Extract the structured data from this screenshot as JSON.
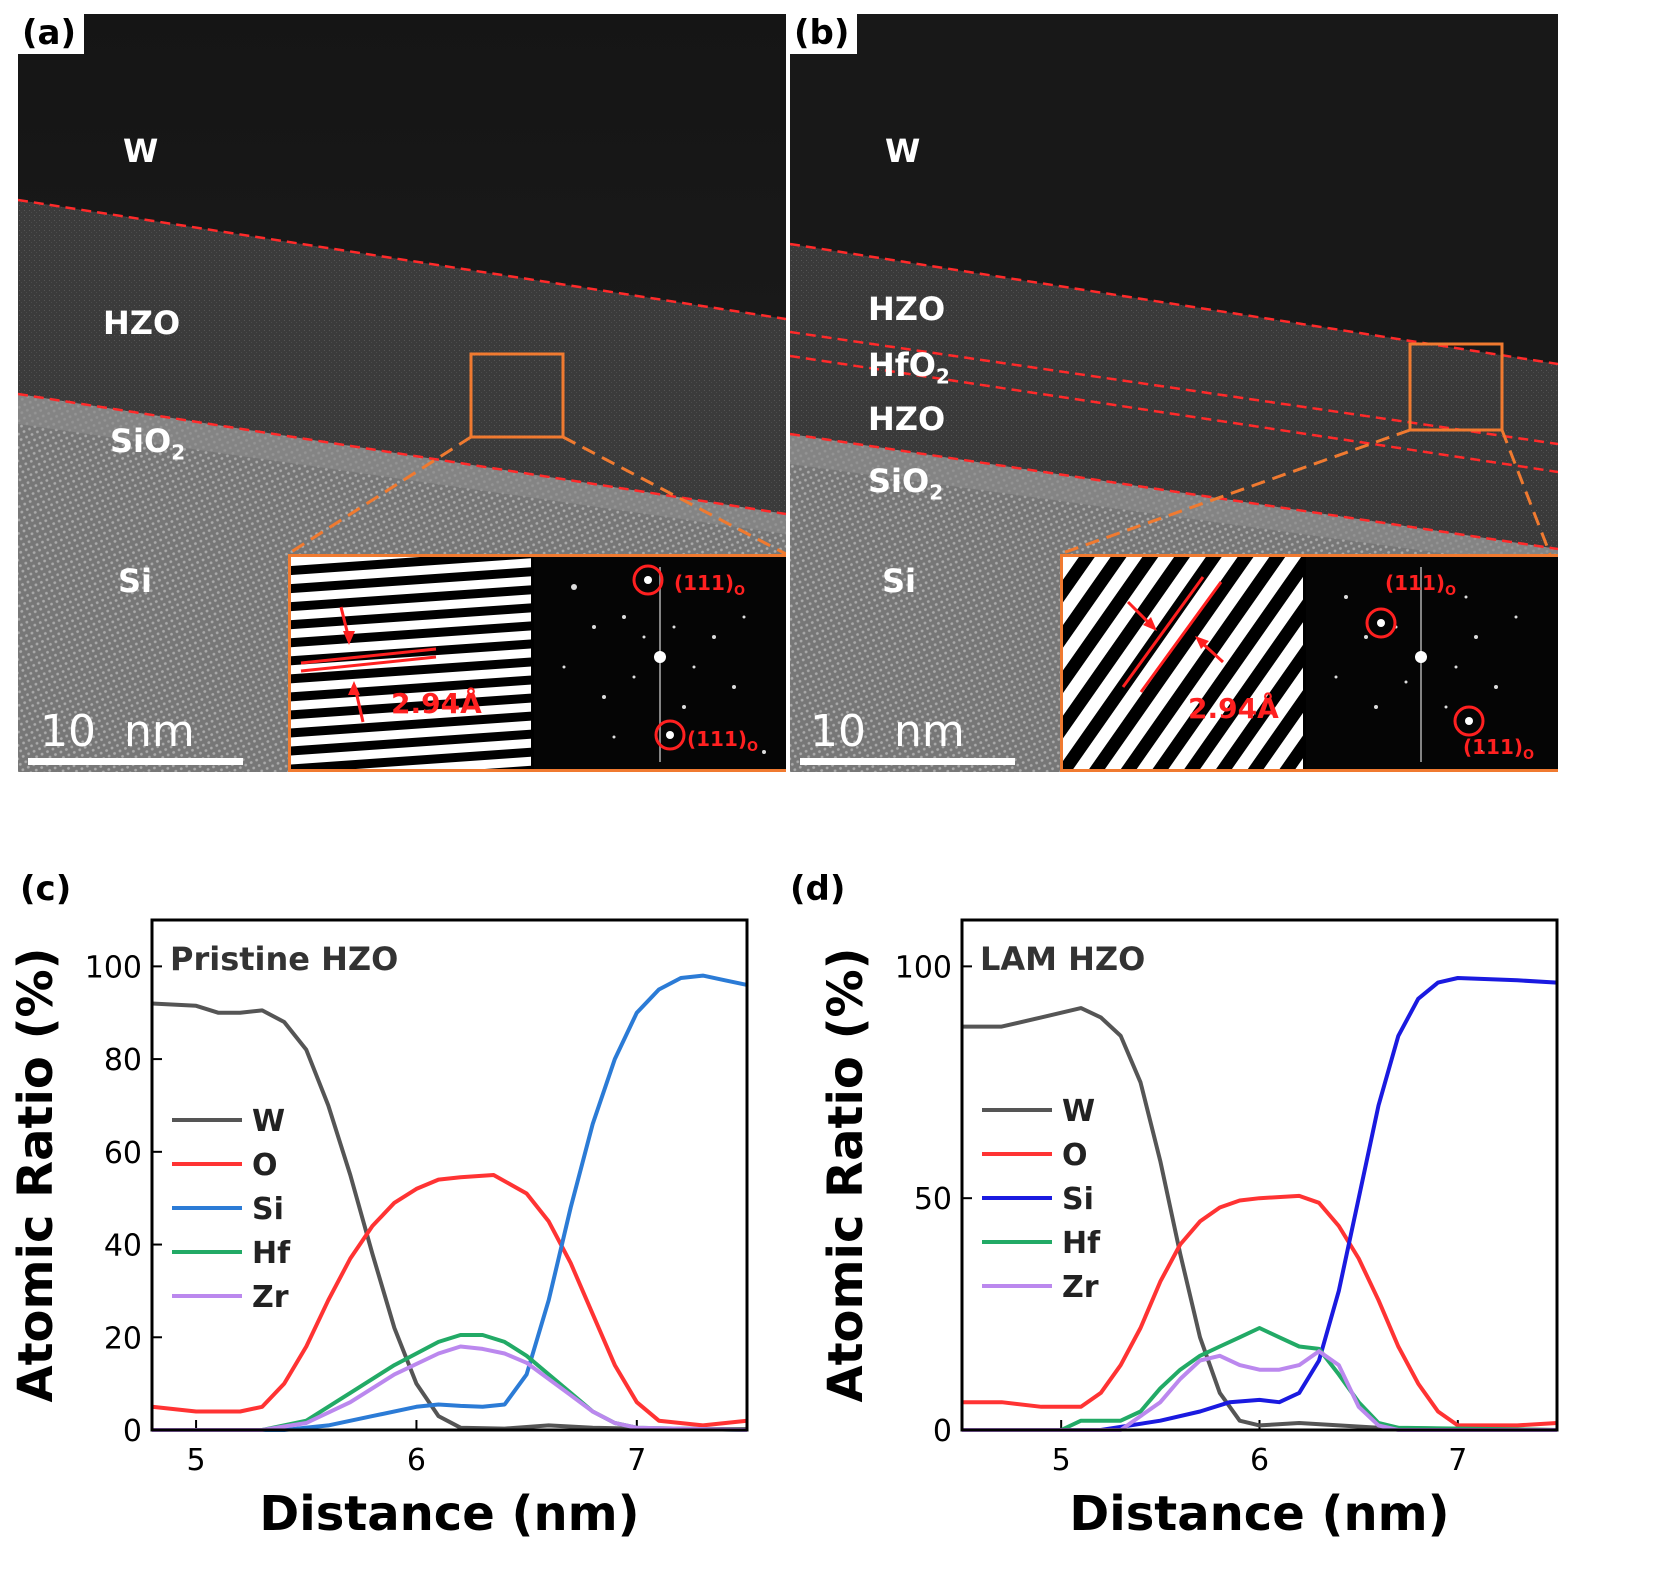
{
  "panels": {
    "a": {
      "tag": "(a)",
      "layers": {
        "w": "W",
        "hzo": "HZO",
        "sio2_main": "SiO",
        "sio2_sub": "2",
        "si": "Si"
      },
      "scale_label": "10  nm",
      "inset": {
        "spacing": "2.94Å",
        "spot1": "(111)",
        "spot1_sub": "O",
        "spot2": "(111)",
        "spot2_sub": "O"
      }
    },
    "b": {
      "tag": "(b)",
      "layers": {
        "w": "W",
        "hzo_top": "HZO",
        "hfo2_main": "HfO",
        "hfo2_sub": "2",
        "hzo_bottom": "HZO",
        "sio2_main": "SiO",
        "sio2_sub": "2",
        "si": "Si"
      },
      "scale_label": "10  nm",
      "inset": {
        "spacing": "2.94Å",
        "spot1": "(111)",
        "spot1_sub": "O",
        "spot2": "(111)",
        "spot2_sub": "O"
      }
    },
    "c": {
      "tag": "(c)"
    },
    "d": {
      "tag": "(d)"
    }
  },
  "colors": {
    "W": "#555555",
    "O": "#ff3333",
    "Si_c": "#2b7bd6",
    "Si_d": "#1a1ae0",
    "Hf": "#22aa66",
    "Zr": "#bb88ee",
    "orange": "#f07a30",
    "red": "#ff2020"
  },
  "chart_data": [
    {
      "type": "line",
      "title": "Pristine HZO",
      "xlabel": "Distance (nm)",
      "ylabel": "Atomic Ratio (%)",
      "xlim": [
        4.8,
        7.5
      ],
      "ylim": [
        0,
        110
      ],
      "xticks": [
        5,
        6,
        7
      ],
      "yticks": [
        0,
        20,
        40,
        60,
        80,
        100
      ],
      "legend_position": "middle-left",
      "series": [
        {
          "name": "W",
          "points": [
            [
              4.8,
              92
            ],
            [
              5.0,
              91.5
            ],
            [
              5.1,
              90
            ],
            [
              5.2,
              90
            ],
            [
              5.3,
              90.5
            ],
            [
              5.4,
              88
            ],
            [
              5.5,
              82
            ],
            [
              5.6,
              70
            ],
            [
              5.7,
              55
            ],
            [
              5.8,
              38
            ],
            [
              5.9,
              22
            ],
            [
              6.0,
              10
            ],
            [
              6.1,
              3
            ],
            [
              6.2,
              0.5
            ],
            [
              6.4,
              0.3
            ],
            [
              6.6,
              1
            ],
            [
              6.8,
              0.5
            ],
            [
              7.0,
              0.3
            ],
            [
              7.5,
              0.2
            ]
          ]
        },
        {
          "name": "O",
          "points": [
            [
              4.8,
              5
            ],
            [
              5.0,
              4
            ],
            [
              5.2,
              4
            ],
            [
              5.3,
              5
            ],
            [
              5.4,
              10
            ],
            [
              5.5,
              18
            ],
            [
              5.6,
              28
            ],
            [
              5.7,
              37
            ],
            [
              5.8,
              44
            ],
            [
              5.9,
              49
            ],
            [
              6.0,
              52
            ],
            [
              6.1,
              54
            ],
            [
              6.2,
              54.5
            ],
            [
              6.35,
              55
            ],
            [
              6.5,
              51
            ],
            [
              6.6,
              45
            ],
            [
              6.7,
              36
            ],
            [
              6.8,
              25
            ],
            [
              6.9,
              14
            ],
            [
              7.0,
              6
            ],
            [
              7.1,
              2
            ],
            [
              7.3,
              1
            ],
            [
              7.5,
              2
            ]
          ]
        },
        {
          "name": "Si",
          "points": [
            [
              4.8,
              0
            ],
            [
              5.4,
              0
            ],
            [
              5.6,
              1
            ],
            [
              5.8,
              3
            ],
            [
              6.0,
              5
            ],
            [
              6.1,
              5.5
            ],
            [
              6.2,
              5.2
            ],
            [
              6.3,
              5
            ],
            [
              6.4,
              5.5
            ],
            [
              6.5,
              12
            ],
            [
              6.6,
              28
            ],
            [
              6.7,
              48
            ],
            [
              6.8,
              66
            ],
            [
              6.9,
              80
            ],
            [
              7.0,
              90
            ],
            [
              7.1,
              95
            ],
            [
              7.2,
              97.5
            ],
            [
              7.3,
              98
            ],
            [
              7.4,
              97
            ],
            [
              7.5,
              96
            ]
          ]
        },
        {
          "name": "Hf",
          "points": [
            [
              4.8,
              0
            ],
            [
              5.3,
              0
            ],
            [
              5.5,
              2
            ],
            [
              5.7,
              8
            ],
            [
              5.9,
              14
            ],
            [
              6.1,
              19
            ],
            [
              6.2,
              20.5
            ],
            [
              6.3,
              20.5
            ],
            [
              6.4,
              19
            ],
            [
              6.5,
              16
            ],
            [
              6.6,
              12
            ],
            [
              6.7,
              8
            ],
            [
              6.8,
              4
            ],
            [
              6.9,
              1.5
            ],
            [
              7.0,
              0.5
            ],
            [
              7.5,
              0
            ]
          ]
        },
        {
          "name": "Zr",
          "points": [
            [
              4.8,
              0
            ],
            [
              5.3,
              0
            ],
            [
              5.5,
              1.5
            ],
            [
              5.7,
              6
            ],
            [
              5.9,
              12
            ],
            [
              6.1,
              16.5
            ],
            [
              6.2,
              18
            ],
            [
              6.3,
              17.5
            ],
            [
              6.4,
              16.5
            ],
            [
              6.5,
              14.5
            ],
            [
              6.6,
              11
            ],
            [
              6.7,
              7.5
            ],
            [
              6.8,
              4
            ],
            [
              6.9,
              1.5
            ],
            [
              7.0,
              0.5
            ],
            [
              7.5,
              0
            ]
          ]
        }
      ]
    },
    {
      "type": "line",
      "title": "LAM HZO",
      "xlabel": "Distance (nm)",
      "ylabel": "Atomic Ratio (%)",
      "xlim": [
        4.5,
        7.5
      ],
      "ylim": [
        0,
        110
      ],
      "xticks": [
        5,
        6,
        7
      ],
      "yticks": [
        0,
        50,
        100
      ],
      "legend_position": "middle-left",
      "series": [
        {
          "name": "W",
          "points": [
            [
              4.5,
              87
            ],
            [
              4.7,
              87
            ],
            [
              4.9,
              89
            ],
            [
              5.1,
              91
            ],
            [
              5.2,
              89
            ],
            [
              5.3,
              85
            ],
            [
              5.4,
              75
            ],
            [
              5.5,
              58
            ],
            [
              5.6,
              38
            ],
            [
              5.7,
              20
            ],
            [
              5.8,
              8
            ],
            [
              5.9,
              2
            ],
            [
              6.0,
              1
            ],
            [
              6.2,
              1.5
            ],
            [
              6.4,
              1
            ],
            [
              6.6,
              0.5
            ],
            [
              7.5,
              0
            ]
          ]
        },
        {
          "name": "O",
          "points": [
            [
              4.5,
              6
            ],
            [
              4.7,
              6
            ],
            [
              4.9,
              5
            ],
            [
              5.1,
              5
            ],
            [
              5.2,
              8
            ],
            [
              5.3,
              14
            ],
            [
              5.4,
              22
            ],
            [
              5.5,
              32
            ],
            [
              5.6,
              40
            ],
            [
              5.7,
              45
            ],
            [
              5.8,
              48
            ],
            [
              5.9,
              49.5
            ],
            [
              6.0,
              50
            ],
            [
              6.2,
              50.5
            ],
            [
              6.3,
              49
            ],
            [
              6.4,
              44
            ],
            [
              6.5,
              37
            ],
            [
              6.6,
              28
            ],
            [
              6.7,
              18
            ],
            [
              6.8,
              10
            ],
            [
              6.9,
              4
            ],
            [
              7.0,
              1
            ],
            [
              7.3,
              1
            ],
            [
              7.5,
              1.5
            ]
          ]
        },
        {
          "name": "Si",
          "points": [
            [
              4.5,
              0
            ],
            [
              5.2,
              0
            ],
            [
              5.5,
              2
            ],
            [
              5.7,
              4
            ],
            [
              5.85,
              6
            ],
            [
              6.0,
              6.5
            ],
            [
              6.1,
              6
            ],
            [
              6.2,
              8
            ],
            [
              6.3,
              15
            ],
            [
              6.4,
              30
            ],
            [
              6.5,
              50
            ],
            [
              6.6,
              70
            ],
            [
              6.7,
              85
            ],
            [
              6.8,
              93
            ],
            [
              6.9,
              96.5
            ],
            [
              7.0,
              97.5
            ],
            [
              7.3,
              97
            ],
            [
              7.5,
              96.5
            ]
          ]
        },
        {
          "name": "Hf",
          "points": [
            [
              4.5,
              0
            ],
            [
              5.0,
              0
            ],
            [
              5.1,
              2
            ],
            [
              5.3,
              2
            ],
            [
              5.4,
              4
            ],
            [
              5.5,
              9
            ],
            [
              5.6,
              13
            ],
            [
              5.7,
              16
            ],
            [
              5.8,
              18
            ],
            [
              5.9,
              20
            ],
            [
              6.0,
              22
            ],
            [
              6.1,
              20
            ],
            [
              6.2,
              18
            ],
            [
              6.3,
              17.5
            ],
            [
              6.4,
              12
            ],
            [
              6.5,
              6
            ],
            [
              6.6,
              1.5
            ],
            [
              6.7,
              0.5
            ],
            [
              7.5,
              0
            ]
          ]
        },
        {
          "name": "Zr",
          "points": [
            [
              4.5,
              0
            ],
            [
              5.3,
              0
            ],
            [
              5.5,
              6
            ],
            [
              5.6,
              11
            ],
            [
              5.7,
              15
            ],
            [
              5.8,
              16
            ],
            [
              5.9,
              14
            ],
            [
              6.0,
              13
            ],
            [
              6.1,
              13
            ],
            [
              6.2,
              14
            ],
            [
              6.3,
              17
            ],
            [
              6.4,
              14
            ],
            [
              6.5,
              5
            ],
            [
              6.6,
              1
            ],
            [
              6.7,
              0
            ],
            [
              7.5,
              0
            ]
          ]
        }
      ]
    }
  ]
}
